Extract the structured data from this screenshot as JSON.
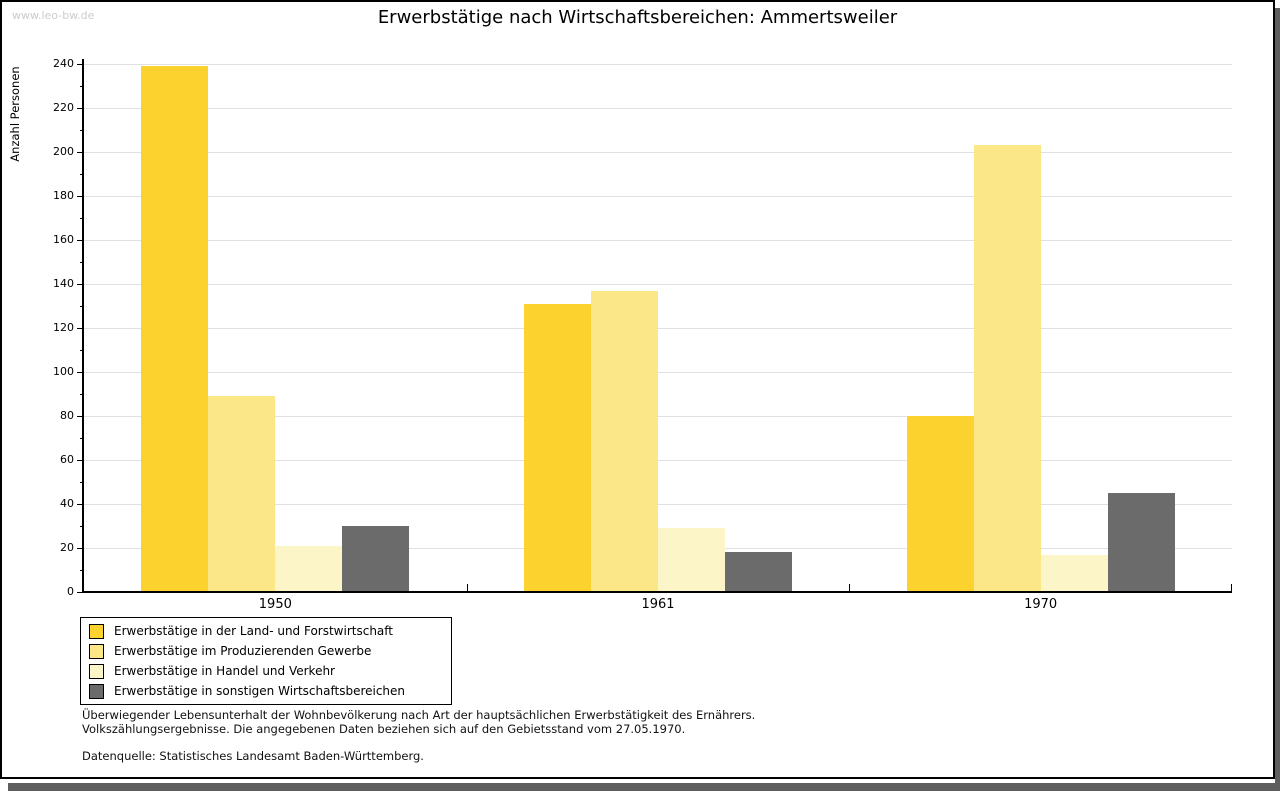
{
  "page": {
    "watermark": "www.leo-bw.de"
  },
  "chart_data": {
    "type": "bar",
    "title": "Erwerbstätige nach Wirtschaftsbereichen: Ammertsweiler",
    "xlabel": "",
    "ylabel": "Anzahl Personen",
    "categories": [
      "1950",
      "1961",
      "1970"
    ],
    "series": [
      {
        "key": "land-forstwirtschaft",
        "name": "Erwerbstätige in der Land- und Forstwirtschaft",
        "color": "#fcd32e",
        "values": [
          239,
          131,
          80
        ]
      },
      {
        "key": "produzierendes-gewerbe",
        "name": "Erwerbstätige im Produzierenden Gewerbe",
        "color": "#fbe787",
        "values": [
          89,
          137,
          203
        ]
      },
      {
        "key": "handel-verkehr",
        "name": "Erwerbstätige in Handel und Verkehr",
        "color": "#fcf5c7",
        "values": [
          21,
          29,
          17
        ]
      },
      {
        "key": "sonstige-wirtschaftsbereiche",
        "name": "Erwerbstätige in sonstigen Wirtschaftsbereichen",
        "color": "#6b6b6b",
        "values": [
          30,
          18,
          45
        ]
      }
    ],
    "ylim": [
      0,
      240
    ],
    "ytick_step": 20,
    "ytick_minor_step": 10,
    "grid": true,
    "gridline_color": "#e0e0e0",
    "legend_position": "bottom-left"
  },
  "footnotes": {
    "line1": "Überwiegender Lebensunterhalt der Wohnbevölkerung nach Art der hauptsächlichen Erwerbstätigkeit des Ernährers.",
    "line2": "Volkszählungsergebnisse. Die angegebenen Daten beziehen sich auf den Gebietsstand vom 27.05.1970.",
    "source": "Datenquelle: Statistisches Landesamt Baden-Württemberg."
  }
}
